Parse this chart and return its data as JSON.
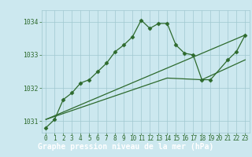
{
  "hours": [
    0,
    1,
    2,
    3,
    4,
    5,
    6,
    7,
    8,
    9,
    10,
    11,
    12,
    13,
    14,
    15,
    16,
    17,
    18,
    19,
    20,
    21,
    22,
    23
  ],
  "pressure_main": [
    1030.8,
    1031.05,
    1031.65,
    1031.85,
    1032.15,
    1032.25,
    1032.5,
    1032.75,
    1033.1,
    1033.3,
    1033.55,
    1034.05,
    1033.8,
    1033.95,
    1033.95,
    1033.3,
    1033.05,
    1033.0,
    1032.25,
    1032.25,
    null,
    1032.85,
    1033.1,
    1033.6
  ],
  "pressure_line1_x": [
    0,
    23
  ],
  "pressure_line1_y": [
    1031.05,
    1033.6
  ],
  "pressure_line2_x": [
    0,
    14,
    18,
    23
  ],
  "pressure_line2_y": [
    1031.05,
    1032.3,
    1032.25,
    1032.85
  ],
  "ylim": [
    1030.65,
    1034.35
  ],
  "yticks": [
    1031,
    1032,
    1033,
    1034
  ],
  "xticks": [
    0,
    1,
    2,
    3,
    4,
    5,
    6,
    7,
    8,
    9,
    10,
    11,
    12,
    13,
    14,
    15,
    16,
    17,
    18,
    19,
    20,
    21,
    22,
    23
  ],
  "line_color": "#2d6a2d",
  "bg_color": "#cce8ef",
  "grid_color": "#a0c8d0",
  "xlabel": "Graphe pression niveau de la mer (hPa)",
  "xlabel_bg": "#3a7a3a",
  "xlabel_fg": "#ffffff",
  "xlabel_fontsize": 7.0,
  "tick_fontsize": 5.5,
  "marker": "D",
  "markersize": 2.5,
  "linewidth": 0.9
}
